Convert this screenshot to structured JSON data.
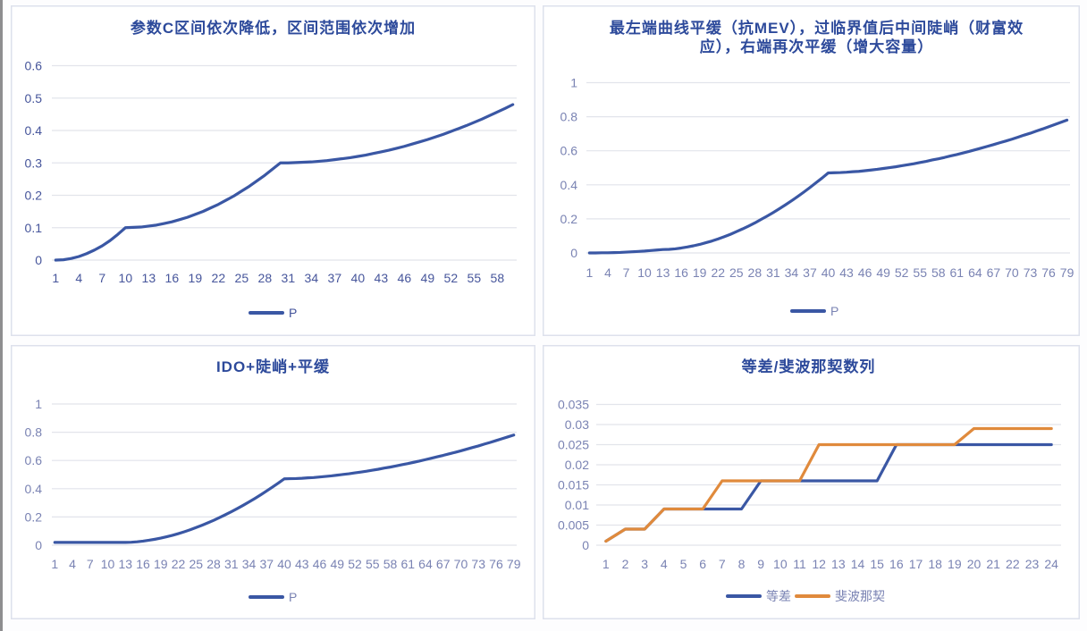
{
  "charts": [
    {
      "legend": [
        {
          "label_ref": "chart_data.0.series.0.name"
        }
      ]
    },
    {
      "legend": [
        {
          "label_ref": "chart_data.1.series.0.name"
        }
      ]
    },
    {
      "legend": [
        {
          "label_ref": "chart_data.2.series.0.name"
        }
      ]
    },
    {
      "legend": [
        {
          "label_ref": "chart_data.3.series.0.name"
        },
        {
          "label_ref": "chart_data.3.series.1.name"
        }
      ]
    }
  ],
  "chart_data": [
    {
      "type": "line",
      "title": "参数C区间依次降低，区间范围依次增加",
      "xlabel": "",
      "ylabel": "",
      "ylim": [
        0,
        0.6
      ],
      "y_ticks": [
        0,
        0.1,
        0.2,
        0.3,
        0.4,
        0.5,
        0.6
      ],
      "y_tick_labels": [
        "0",
        "0.1",
        "0.2",
        "0.3",
        "0.4",
        "0.5",
        "0.6"
      ],
      "categories": [
        1,
        2,
        3,
        4,
        5,
        6,
        7,
        8,
        9,
        10,
        11,
        12,
        13,
        14,
        15,
        16,
        17,
        18,
        19,
        20,
        21,
        22,
        23,
        24,
        25,
        26,
        27,
        28,
        29,
        30,
        31,
        32,
        33,
        34,
        35,
        36,
        37,
        38,
        39,
        40,
        41,
        42,
        43,
        44,
        45,
        46,
        47,
        48,
        49,
        50,
        51,
        52,
        53,
        54,
        55,
        56,
        57,
        58,
        59,
        60
      ],
      "x_tick_labels": [
        "1",
        "4",
        "7",
        "10",
        "13",
        "16",
        "19",
        "22",
        "25",
        "28",
        "31",
        "34",
        "37",
        "40",
        "43",
        "46",
        "49",
        "52",
        "55",
        "58"
      ],
      "series": [
        {
          "name": "P",
          "color": "#3a57a4",
          "values": [
            0,
            0.001,
            0.005,
            0.011,
            0.02,
            0.031,
            0.044,
            0.06,
            0.079,
            0.1,
            0.101,
            0.102,
            0.105,
            0.108,
            0.113,
            0.118,
            0.125,
            0.132,
            0.141,
            0.15,
            0.161,
            0.172,
            0.185,
            0.198,
            0.213,
            0.228,
            0.245,
            0.262,
            0.281,
            0.3,
            0.3,
            0.301,
            0.302,
            0.303,
            0.305,
            0.307,
            0.31,
            0.313,
            0.316,
            0.32,
            0.324,
            0.329,
            0.334,
            0.339,
            0.345,
            0.351,
            0.358,
            0.365,
            0.372,
            0.38,
            0.388,
            0.397,
            0.406,
            0.415,
            0.425,
            0.435,
            0.446,
            0.457,
            0.468,
            0.48
          ]
        }
      ],
      "grid": true,
      "legend_position": "bottom"
    },
    {
      "type": "line",
      "title": "最左端曲线平缓（抗MEV），过临界值后中间陡峭（财富效应），右端再次平缓（增大容量）",
      "title_lines": [
        "最左端曲线平缓（抗MEV），过临界值后中间陡峭（财富效",
        "应），右端再次平缓（增大容量）"
      ],
      "xlabel": "",
      "ylabel": "",
      "ylim": [
        0,
        1
      ],
      "y_ticks": [
        0,
        0.2,
        0.4,
        0.6,
        0.8,
        1
      ],
      "y_tick_labels": [
        "0",
        "0.2",
        "0.4",
        "0.6",
        "0.8",
        "1"
      ],
      "categories": [
        1,
        2,
        3,
        4,
        5,
        6,
        7,
        8,
        9,
        10,
        11,
        12,
        13,
        14,
        15,
        16,
        17,
        18,
        19,
        20,
        21,
        22,
        23,
        24,
        25,
        26,
        27,
        28,
        29,
        30,
        31,
        32,
        33,
        34,
        35,
        36,
        37,
        38,
        39,
        40,
        41,
        42,
        43,
        44,
        45,
        46,
        47,
        48,
        49,
        50,
        51,
        52,
        53,
        54,
        55,
        56,
        57,
        58,
        59,
        60,
        61,
        62,
        63,
        64,
        65,
        66,
        67,
        68,
        69,
        70,
        71,
        72,
        73,
        74,
        75,
        76,
        77,
        78,
        79
      ],
      "x_tick_labels": [
        "1",
        "4",
        "7",
        "10",
        "13",
        "16",
        "19",
        "22",
        "25",
        "28",
        "31",
        "34",
        "37",
        "40",
        "43",
        "46",
        "49",
        "52",
        "55",
        "58",
        "61",
        "64",
        "67",
        "70",
        "73",
        "76",
        "79"
      ],
      "series": [
        {
          "name": "P",
          "color": "#3a57a4",
          "values": [
            0,
            0,
            0.001,
            0.001,
            0.002,
            0.003,
            0.005,
            0.007,
            0.009,
            0.011,
            0.014,
            0.017,
            0.02,
            0.021,
            0.024,
            0.029,
            0.035,
            0.042,
            0.05,
            0.06,
            0.07,
            0.082,
            0.095,
            0.109,
            0.125,
            0.141,
            0.158,
            0.176,
            0.196,
            0.216,
            0.237,
            0.259,
            0.282,
            0.306,
            0.331,
            0.357,
            0.384,
            0.412,
            0.44,
            0.47,
            0.471,
            0.472,
            0.474,
            0.477,
            0.479,
            0.483,
            0.487,
            0.491,
            0.496,
            0.501,
            0.506,
            0.512,
            0.518,
            0.524,
            0.531,
            0.538,
            0.546,
            0.553,
            0.561,
            0.57,
            0.578,
            0.587,
            0.596,
            0.606,
            0.616,
            0.626,
            0.636,
            0.647,
            0.657,
            0.668,
            0.68,
            0.692,
            0.703,
            0.716,
            0.728,
            0.741,
            0.754,
            0.767,
            0.78
          ]
        }
      ],
      "grid": true,
      "legend_position": "bottom"
    },
    {
      "type": "line",
      "title": "IDO+陡峭+平缓",
      "xlabel": "",
      "ylabel": "",
      "ylim": [
        0,
        1
      ],
      "y_ticks": [
        0,
        0.2,
        0.4,
        0.6,
        0.8,
        1
      ],
      "y_tick_labels": [
        "0",
        "0.2",
        "0.4",
        "0.6",
        "0.8",
        "1"
      ],
      "categories": [
        1,
        2,
        3,
        4,
        5,
        6,
        7,
        8,
        9,
        10,
        11,
        12,
        13,
        14,
        15,
        16,
        17,
        18,
        19,
        20,
        21,
        22,
        23,
        24,
        25,
        26,
        27,
        28,
        29,
        30,
        31,
        32,
        33,
        34,
        35,
        36,
        37,
        38,
        39,
        40,
        41,
        42,
        43,
        44,
        45,
        46,
        47,
        48,
        49,
        50,
        51,
        52,
        53,
        54,
        55,
        56,
        57,
        58,
        59,
        60,
        61,
        62,
        63,
        64,
        65,
        66,
        67,
        68,
        69,
        70,
        71,
        72,
        73,
        74,
        75,
        76,
        77,
        78,
        79
      ],
      "x_tick_labels": [
        "1",
        "4",
        "7",
        "10",
        "13",
        "16",
        "19",
        "22",
        "25",
        "28",
        "31",
        "34",
        "37",
        "40",
        "43",
        "46",
        "49",
        "52",
        "55",
        "58",
        "61",
        "64",
        "67",
        "70",
        "73",
        "76",
        "79"
      ],
      "series": [
        {
          "name": "P",
          "color": "#3a57a4",
          "values": [
            0.02,
            0.02,
            0.02,
            0.02,
            0.02,
            0.02,
            0.02,
            0.02,
            0.02,
            0.02,
            0.02,
            0.02,
            0.02,
            0.021,
            0.024,
            0.029,
            0.035,
            0.042,
            0.05,
            0.06,
            0.07,
            0.082,
            0.095,
            0.109,
            0.125,
            0.141,
            0.158,
            0.176,
            0.196,
            0.216,
            0.237,
            0.259,
            0.282,
            0.306,
            0.331,
            0.357,
            0.384,
            0.412,
            0.44,
            0.47,
            0.471,
            0.472,
            0.474,
            0.477,
            0.479,
            0.483,
            0.487,
            0.491,
            0.496,
            0.501,
            0.506,
            0.512,
            0.518,
            0.524,
            0.531,
            0.538,
            0.546,
            0.553,
            0.561,
            0.57,
            0.578,
            0.587,
            0.596,
            0.606,
            0.616,
            0.626,
            0.636,
            0.647,
            0.657,
            0.668,
            0.68,
            0.692,
            0.703,
            0.716,
            0.728,
            0.741,
            0.754,
            0.767,
            0.78
          ]
        }
      ],
      "grid": true,
      "legend_position": "bottom"
    },
    {
      "type": "line",
      "title": "等差/斐波那契数列",
      "xlabel": "",
      "ylabel": "",
      "ylim": [
        0,
        0.035
      ],
      "y_ticks": [
        0,
        0.005,
        0.01,
        0.015,
        0.02,
        0.025,
        0.03,
        0.035
      ],
      "y_tick_labels": [
        "0",
        "0.005",
        "0.01",
        "0.015",
        "0.02",
        "0.025",
        "0.03",
        "0.035"
      ],
      "categories": [
        1,
        2,
        3,
        4,
        5,
        6,
        7,
        8,
        9,
        10,
        11,
        12,
        13,
        14,
        15,
        16,
        17,
        18,
        19,
        20,
        21,
        22,
        23,
        24
      ],
      "x_tick_labels": [
        "1",
        "2",
        "3",
        "4",
        "5",
        "6",
        "7",
        "8",
        "9",
        "10",
        "11",
        "12",
        "13",
        "14",
        "15",
        "16",
        "17",
        "18",
        "19",
        "20",
        "21",
        "22",
        "23",
        "24"
      ],
      "series": [
        {
          "name": "等差",
          "color": "#3a57a4",
          "values": [
            0.001,
            0.004,
            0.004,
            0.009,
            0.009,
            0.009,
            0.009,
            0.009,
            0.016,
            0.016,
            0.016,
            0.016,
            0.016,
            0.016,
            0.016,
            0.025,
            0.025,
            0.025,
            0.025,
            0.025,
            0.025,
            0.025,
            0.025,
            0.025
          ]
        },
        {
          "name": "斐波那契",
          "color": "#e08a3c",
          "values": [
            0.001,
            0.004,
            0.004,
            0.009,
            0.009,
            0.009,
            0.016,
            0.016,
            0.016,
            0.016,
            0.016,
            0.025,
            0.025,
            0.025,
            0.025,
            0.025,
            0.025,
            0.025,
            0.025,
            0.029,
            0.029,
            0.029,
            0.029,
            0.029
          ]
        }
      ],
      "grid": true,
      "legend_position": "bottom"
    }
  ]
}
